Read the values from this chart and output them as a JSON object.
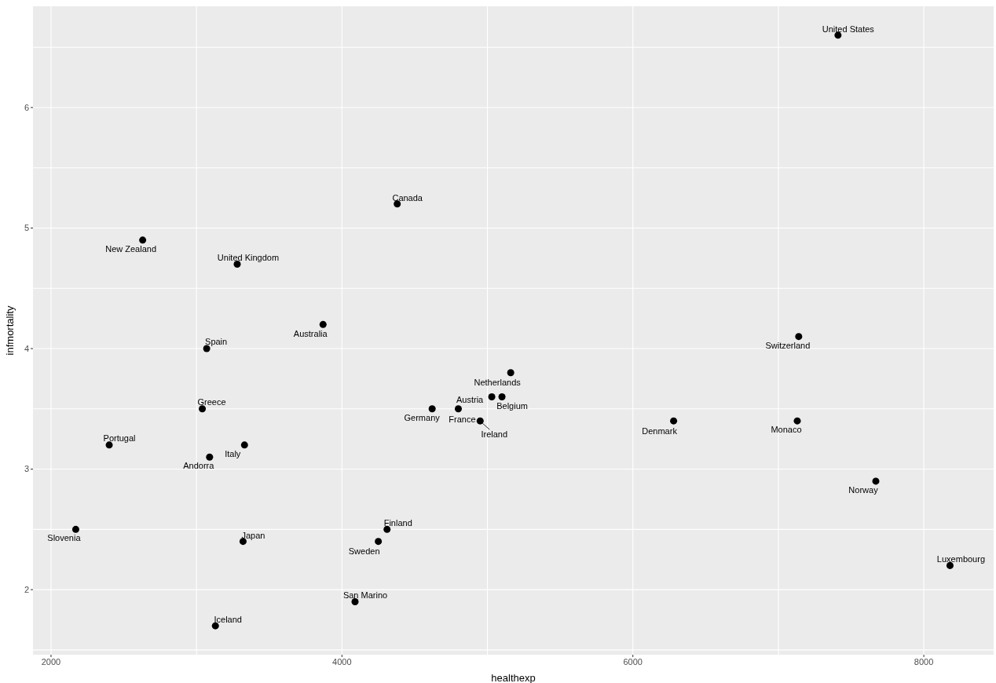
{
  "chart_data": {
    "type": "scatter",
    "xlabel": "healthexp",
    "ylabel": "infmortality",
    "marker": "circle",
    "grid": true,
    "x": [
      7410,
      4380,
      2630,
      3280,
      3870,
      3070,
      7140,
      5160,
      3040,
      4620,
      5030,
      4800,
      5100,
      4950,
      6280,
      7130,
      2400,
      3090,
      3330,
      7670,
      2170,
      4310,
      4250,
      3320,
      8180,
      4090,
      3130
    ],
    "series": [
      {
        "color": "#000000",
        "values": [
          6.6,
          5.2,
          4.9,
          4.7,
          4.2,
          4.0,
          4.1,
          3.8,
          3.5,
          3.5,
          3.6,
          3.5,
          3.6,
          3.4,
          3.4,
          3.4,
          3.2,
          3.1,
          3.2,
          2.9,
          2.5,
          2.5,
          2.4,
          2.4,
          2.2,
          1.9,
          1.7
        ]
      }
    ],
    "annotations": [
      {
        "text": "United States",
        "x": 7410,
        "y": 6.6
      },
      {
        "text": "Canada",
        "x": 4380,
        "y": 5.2
      },
      {
        "text": "New Zealand",
        "x": 2630,
        "y": 4.9
      },
      {
        "text": "United Kingdom",
        "x": 3280,
        "y": 4.7
      },
      {
        "text": "Australia",
        "x": 3870,
        "y": 4.2
      },
      {
        "text": "Spain",
        "x": 3070,
        "y": 4.0
      },
      {
        "text": "Switzerland",
        "x": 7140,
        "y": 4.1
      },
      {
        "text": "Netherlands",
        "x": 5160,
        "y": 3.8
      },
      {
        "text": "Greece",
        "x": 3040,
        "y": 3.5
      },
      {
        "text": "Germany",
        "x": 4620,
        "y": 3.5
      },
      {
        "text": "Austria",
        "x": 5030,
        "y": 3.6
      },
      {
        "text": "France",
        "x": 4800,
        "y": 3.5
      },
      {
        "text": "Belgium",
        "x": 5100,
        "y": 3.6
      },
      {
        "text": "Ireland",
        "x": 4950,
        "y": 3.4
      },
      {
        "text": "Denmark",
        "x": 6280,
        "y": 3.4
      },
      {
        "text": "Monaco",
        "x": 7130,
        "y": 3.4
      },
      {
        "text": "Portugal",
        "x": 2400,
        "y": 3.2
      },
      {
        "text": "Andorra",
        "x": 3090,
        "y": 3.1
      },
      {
        "text": "Italy",
        "x": 3330,
        "y": 3.2
      },
      {
        "text": "Norway",
        "x": 7670,
        "y": 2.9
      },
      {
        "text": "Slovenia",
        "x": 2170,
        "y": 2.5
      },
      {
        "text": "Finland",
        "x": 4310,
        "y": 2.5
      },
      {
        "text": "Sweden",
        "x": 4250,
        "y": 2.4
      },
      {
        "text": "Japan",
        "x": 3320,
        "y": 2.4
      },
      {
        "text": "Luxembourg",
        "x": 8180,
        "y": 2.2
      },
      {
        "text": "San Marino",
        "x": 4090,
        "y": 1.9
      },
      {
        "text": "Iceland",
        "x": 3130,
        "y": 1.7
      }
    ],
    "xlim": [
      1876,
      8480
    ],
    "ylim": [
      1.46,
      6.84
    ],
    "xticks": [
      2000,
      {
        "value": 3000,
        "label": null
      },
      4000,
      {
        "value": 5000,
        "label": null
      },
      6000,
      {
        "value": 7000,
        "label": null
      },
      8000
    ],
    "yticks": [
      {
        "value": 1.5,
        "label": null
      },
      2,
      {
        "value": 2.5,
        "label": null
      },
      3,
      {
        "value": 3.5,
        "label": null
      },
      4,
      {
        "value": 4.5,
        "label": null
      },
      5,
      {
        "value": 5.5,
        "label": null
      },
      6,
      {
        "value": 6.5,
        "label": null
      }
    ]
  }
}
